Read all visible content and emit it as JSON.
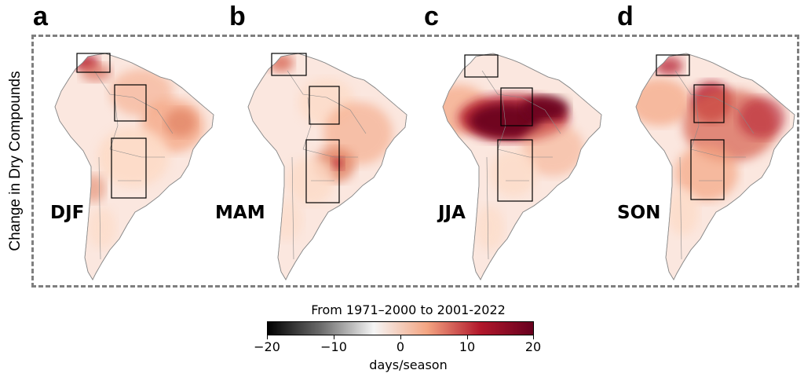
{
  "figure": {
    "ylabel": "Change in Dry Compounds",
    "panels": [
      {
        "letter": "a",
        "season": "DJF",
        "variant": "djf"
      },
      {
        "letter": "b",
        "season": "MAM",
        "variant": "mam"
      },
      {
        "letter": "c",
        "season": "JJA",
        "variant": "jja"
      },
      {
        "letter": "d",
        "season": "SON",
        "variant": "son"
      }
    ]
  },
  "colorbar": {
    "title": "From 1971–2000 to 2001-2022",
    "unit": "days/season",
    "range": [
      -20,
      20
    ],
    "ticks": [
      "−20",
      "−10",
      "0",
      "10",
      "20"
    ],
    "colors": [
      "#000000",
      "#6b6b6b",
      "#f5f5f5",
      "#f4a582",
      "#b2182b",
      "#67001f"
    ]
  }
}
